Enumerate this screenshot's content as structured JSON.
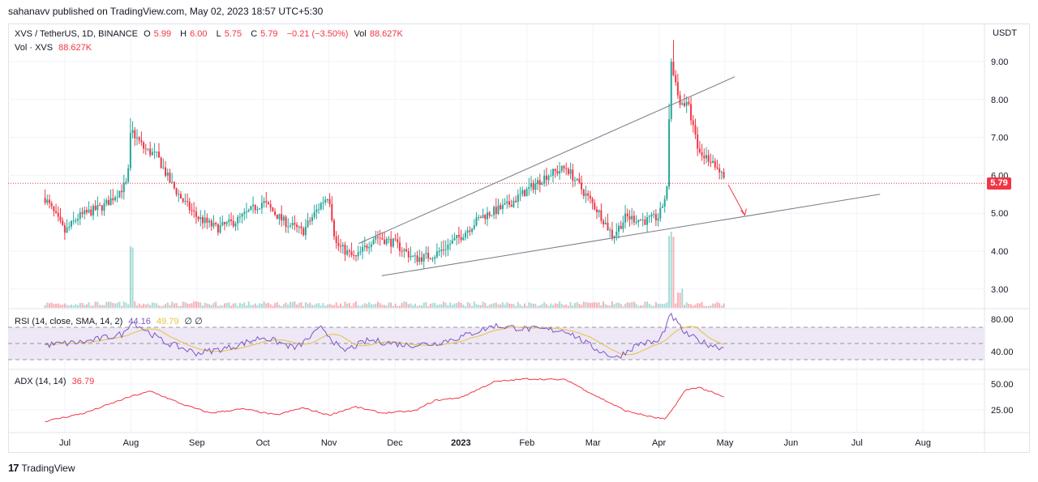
{
  "published": "sahanavv published on TradingView.com, May 02, 2023 18:57 UTC+5:30",
  "legend": {
    "symbol": "XVS / TetherUS, 1D, BINANCE",
    "o_label": "O",
    "o": "5.99",
    "h_label": "H",
    "h": "6.00",
    "l_label": "L",
    "l": "5.75",
    "c_label": "C",
    "c": "5.79",
    "change": "−0.21 (−3.50%)",
    "vol_label": "Vol",
    "vol": "88.627K",
    "vol_line_label": "Vol · XVS",
    "vol_line_value": "88.627K",
    "rsi_label": "RSI (14, close, SMA, 14, 2)",
    "rsi": "44.16",
    "rsi_sma": "49.79",
    "rsi_extra": "∅ ∅",
    "adx_label": "ADX (14, 14)",
    "adx": "36.79"
  },
  "axis": {
    "currency": "USDT",
    "last_price": "5.79"
  },
  "brand": "TradingView",
  "colors": {
    "up": "#26a69a",
    "down": "#f23645",
    "rsi": "#7e57c2",
    "rsi_sma": "#e8c13f",
    "adx": "#f23645",
    "rsi_band": "#ede7f6",
    "trendline": "#787b86"
  },
  "chart_data": [
    {
      "type": "candlestick",
      "pane": "price",
      "x_tick_labels": [
        "Jul",
        "Aug",
        "Sep",
        "Oct",
        "Nov",
        "Dec",
        "2023",
        "Feb",
        "Mar",
        "Apr",
        "May",
        "Jun",
        "Jul",
        "Aug"
      ],
      "y_tick_labels": [
        "9.00",
        "8.00",
        "7.00",
        "6.00",
        "5.00",
        "4.00",
        "3.00"
      ],
      "ylim": [
        2.6,
        10.0
      ],
      "anchors": [
        {
          "month_index": -0.3,
          "price": 5.4
        },
        {
          "month_index": 0.0,
          "price": 4.5
        },
        {
          "month_index": 0.2,
          "price": 4.9
        },
        {
          "month_index": 0.6,
          "price": 5.2
        },
        {
          "month_index": 0.95,
          "price": 5.8
        },
        {
          "month_index": 1.0,
          "price": 7.2
        },
        {
          "month_index": 1.2,
          "price": 6.7
        },
        {
          "month_index": 1.4,
          "price": 6.5
        },
        {
          "month_index": 1.6,
          "price": 5.8
        },
        {
          "month_index": 1.8,
          "price": 5.3
        },
        {
          "month_index": 2.0,
          "price": 4.9
        },
        {
          "month_index": 2.3,
          "price": 4.6
        },
        {
          "month_index": 2.6,
          "price": 4.8
        },
        {
          "month_index": 3.0,
          "price": 5.3
        },
        {
          "month_index": 3.3,
          "price": 4.8
        },
        {
          "month_index": 3.6,
          "price": 4.5
        },
        {
          "month_index": 3.9,
          "price": 5.3
        },
        {
          "month_index": 4.0,
          "price": 5.5
        },
        {
          "month_index": 4.1,
          "price": 4.2
        },
        {
          "month_index": 4.4,
          "price": 3.8
        },
        {
          "month_index": 4.7,
          "price": 4.4
        },
        {
          "month_index": 5.0,
          "price": 4.2
        },
        {
          "month_index": 5.3,
          "price": 3.8
        },
        {
          "month_index": 5.6,
          "price": 3.9
        },
        {
          "month_index": 6.0,
          "price": 4.4
        },
        {
          "month_index": 6.3,
          "price": 4.9
        },
        {
          "month_index": 6.7,
          "price": 5.2
        },
        {
          "month_index": 7.0,
          "price": 5.6
        },
        {
          "month_index": 7.3,
          "price": 6.0
        },
        {
          "month_index": 7.6,
          "price": 6.2
        },
        {
          "month_index": 7.8,
          "price": 5.7
        },
        {
          "month_index": 8.1,
          "price": 5.0
        },
        {
          "month_index": 8.3,
          "price": 4.4
        },
        {
          "month_index": 8.5,
          "price": 4.9
        },
        {
          "month_index": 8.8,
          "price": 4.8
        },
        {
          "month_index": 9.0,
          "price": 4.9
        },
        {
          "month_index": 9.12,
          "price": 5.6
        },
        {
          "month_index": 9.18,
          "price": 9.1
        },
        {
          "month_index": 9.3,
          "price": 8.0
        },
        {
          "month_index": 9.45,
          "price": 7.8
        },
        {
          "month_index": 9.6,
          "price": 6.6
        },
        {
          "month_index": 9.8,
          "price": 6.4
        },
        {
          "month_index": 9.95,
          "price": 6.0
        },
        {
          "month_index": 10.0,
          "price": 5.79
        }
      ],
      "last_bar": {
        "open": 5.99,
        "high": 6.0,
        "low": 5.75,
        "close": 5.79
      }
    },
    {
      "type": "bar",
      "pane": "volume",
      "name": "Vol · XVS",
      "last_value": "88.627K"
    },
    {
      "type": "line",
      "pane": "rsi",
      "y_tick_labels": [
        "80.00",
        "40.00"
      ],
      "ylim": [
        20,
        95
      ],
      "upper_band": 70,
      "lower_band": 30,
      "anchors": [
        {
          "month_index": -0.3,
          "value": 48
        },
        {
          "month_index": 0.3,
          "value": 52
        },
        {
          "month_index": 0.9,
          "value": 62
        },
        {
          "month_index": 1.0,
          "value": 78
        },
        {
          "month_index": 1.5,
          "value": 52
        },
        {
          "month_index": 2.0,
          "value": 38
        },
        {
          "month_index": 2.5,
          "value": 45
        },
        {
          "month_index": 3.0,
          "value": 58
        },
        {
          "month_index": 3.5,
          "value": 44
        },
        {
          "month_index": 3.9,
          "value": 70
        },
        {
          "month_index": 4.2,
          "value": 40
        },
        {
          "month_index": 4.6,
          "value": 54
        },
        {
          "month_index": 5.2,
          "value": 48
        },
        {
          "month_index": 5.6,
          "value": 50
        },
        {
          "month_index": 6.0,
          "value": 58
        },
        {
          "month_index": 6.5,
          "value": 72
        },
        {
          "month_index": 7.0,
          "value": 68
        },
        {
          "month_index": 7.6,
          "value": 66
        },
        {
          "month_index": 8.0,
          "value": 45
        },
        {
          "month_index": 8.35,
          "value": 32
        },
        {
          "month_index": 8.7,
          "value": 50
        },
        {
          "month_index": 9.0,
          "value": 52
        },
        {
          "month_index": 9.18,
          "value": 85
        },
        {
          "month_index": 9.4,
          "value": 62
        },
        {
          "month_index": 9.7,
          "value": 50
        },
        {
          "month_index": 10.0,
          "value": 44.16
        }
      ]
    },
    {
      "type": "line",
      "pane": "adx",
      "y_tick_labels": [
        "50.00",
        "25.00"
      ],
      "ylim": [
        10,
        60
      ],
      "anchors": [
        {
          "month_index": -0.3,
          "value": 14
        },
        {
          "month_index": 0.3,
          "value": 22
        },
        {
          "month_index": 1.0,
          "value": 38
        },
        {
          "month_index": 1.3,
          "value": 43
        },
        {
          "month_index": 1.8,
          "value": 30
        },
        {
          "month_index": 2.2,
          "value": 22
        },
        {
          "month_index": 2.7,
          "value": 26
        },
        {
          "month_index": 3.2,
          "value": 20
        },
        {
          "month_index": 3.6,
          "value": 27
        },
        {
          "month_index": 4.0,
          "value": 20
        },
        {
          "month_index": 4.4,
          "value": 28
        },
        {
          "month_index": 4.8,
          "value": 22
        },
        {
          "month_index": 5.3,
          "value": 24
        },
        {
          "month_index": 5.6,
          "value": 34
        },
        {
          "month_index": 6.0,
          "value": 37
        },
        {
          "month_index": 6.5,
          "value": 52
        },
        {
          "month_index": 7.0,
          "value": 55
        },
        {
          "month_index": 7.6,
          "value": 54
        },
        {
          "month_index": 8.0,
          "value": 40
        },
        {
          "month_index": 8.5,
          "value": 24
        },
        {
          "month_index": 8.9,
          "value": 18
        },
        {
          "month_index": 9.1,
          "value": 16
        },
        {
          "month_index": 9.4,
          "value": 44
        },
        {
          "month_index": 9.6,
          "value": 47
        },
        {
          "month_index": 10.0,
          "value": 36.79
        }
      ]
    }
  ]
}
